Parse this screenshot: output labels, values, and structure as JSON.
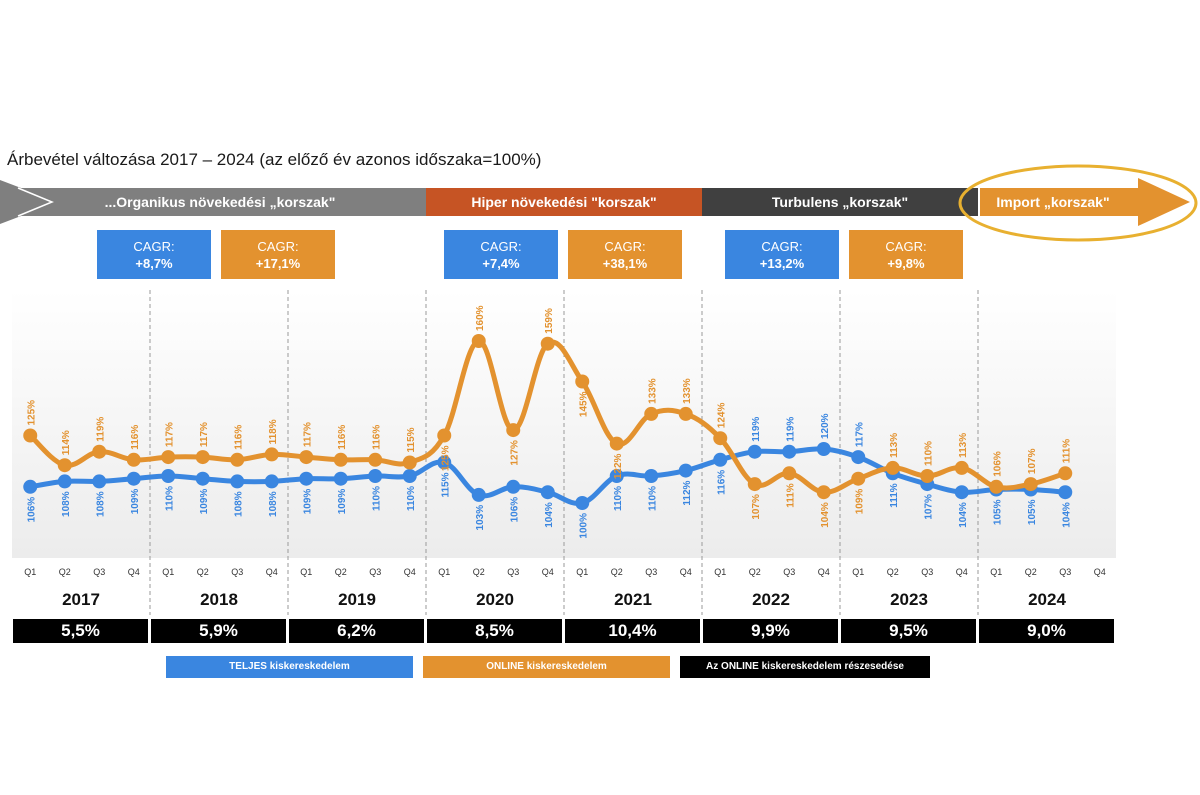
{
  "chart_data": {
    "type": "line",
    "title": "Árbevétel változása 2017 – 2024 (az előző év azonos időszaka=100%)",
    "xlabel": "",
    "ylabel": "",
    "ylim": [
      95,
      165
    ],
    "grid": false,
    "years": [
      "2017",
      "2018",
      "2019",
      "2020",
      "2021",
      "2022",
      "2023",
      "2024"
    ],
    "quarters": [
      "Q1",
      "Q2",
      "Q3",
      "Q4"
    ],
    "series": [
      {
        "name": "TELJES kiskereskedelem",
        "color": "#3a86e0",
        "values": [
          106,
          108,
          108,
          109,
          110,
          109,
          108,
          108,
          109,
          109,
          110,
          110,
          115,
          103,
          106,
          104,
          100,
          110,
          110,
          112,
          116,
          119,
          119,
          120,
          117,
          111,
          107,
          104,
          105,
          105,
          104,
          null
        ],
        "labels": [
          "106%",
          "108%",
          "108%",
          "109%",
          "110%",
          "109%",
          "108%",
          "108%",
          "109%",
          "109%",
          "110%",
          "110%",
          "115%",
          "103%",
          "106%",
          "104%",
          "100%",
          "110%",
          "110%",
          "112%",
          "116%",
          "119%",
          "119%",
          "120%",
          "117%",
          "111%",
          "107%",
          "104%",
          "105%",
          "105%",
          "104%",
          null
        ]
      },
      {
        "name": "ONLINE kiskereskedelem",
        "color": "#e3922f",
        "values": [
          125,
          114,
          119,
          116,
          117,
          117,
          116,
          118,
          117,
          116,
          116,
          115,
          125,
          160,
          127,
          159,
          145,
          122,
          133,
          133,
          124,
          107,
          111,
          104,
          109,
          113,
          110,
          113,
          106,
          107,
          111,
          null
        ],
        "labels": [
          "125%",
          "114%",
          "119%",
          "116%",
          "117%",
          "117%",
          "116%",
          "118%",
          "117%",
          "116%",
          "116%",
          "115%",
          "125%",
          "160%",
          "127%",
          "159%",
          "145%",
          "122%",
          "133%",
          "133%",
          "124%",
          "107%",
          "111%",
          "104%",
          "109%",
          "113%",
          "110%",
          "113%",
          "106%",
          "107%",
          "111%",
          null
        ]
      }
    ],
    "online_share": {
      "name": "Az ONLINE  kiskereskedelem részesedése",
      "values": [
        "5,5%",
        "5,9%",
        "6,2%",
        "8,5%",
        "10,4%",
        "9,9%",
        "9,5%",
        "9,0%"
      ]
    },
    "eras": [
      {
        "label": "...Organikus növekedési „korszak\"",
        "color": "#7f7f7f"
      },
      {
        "label": "Hiper növekedési \"korszak\"",
        "color": "#c65424"
      },
      {
        "label": "Turbulens „korszak\"",
        "color": "#404040"
      },
      {
        "label": "Import „korszak\"",
        "color": "#e3922f"
      }
    ],
    "cagr": [
      {
        "title": "CAGR:",
        "value": "+8,7%",
        "color": "#3a86e0"
      },
      {
        "title": "CAGR:",
        "value": "+17,1%",
        "color": "#e3922f"
      },
      {
        "title": "CAGR:",
        "value": "+7,4%",
        "color": "#3a86e0"
      },
      {
        "title": "CAGR:",
        "value": "+38,1%",
        "color": "#e3922f"
      },
      {
        "title": "CAGR:",
        "value": "+13,2%",
        "color": "#3a86e0"
      },
      {
        "title": "CAGR:",
        "value": "+9,8%",
        "color": "#e3922f"
      }
    ],
    "legend": [
      {
        "label": "TELJES kiskereskedelem",
        "color": "#3a86e0"
      },
      {
        "label": "ONLINE kiskereskedelem",
        "color": "#e3922f"
      },
      {
        "label": "Az ONLINE  kiskereskedelem részesedése",
        "color": "#000000"
      }
    ]
  }
}
